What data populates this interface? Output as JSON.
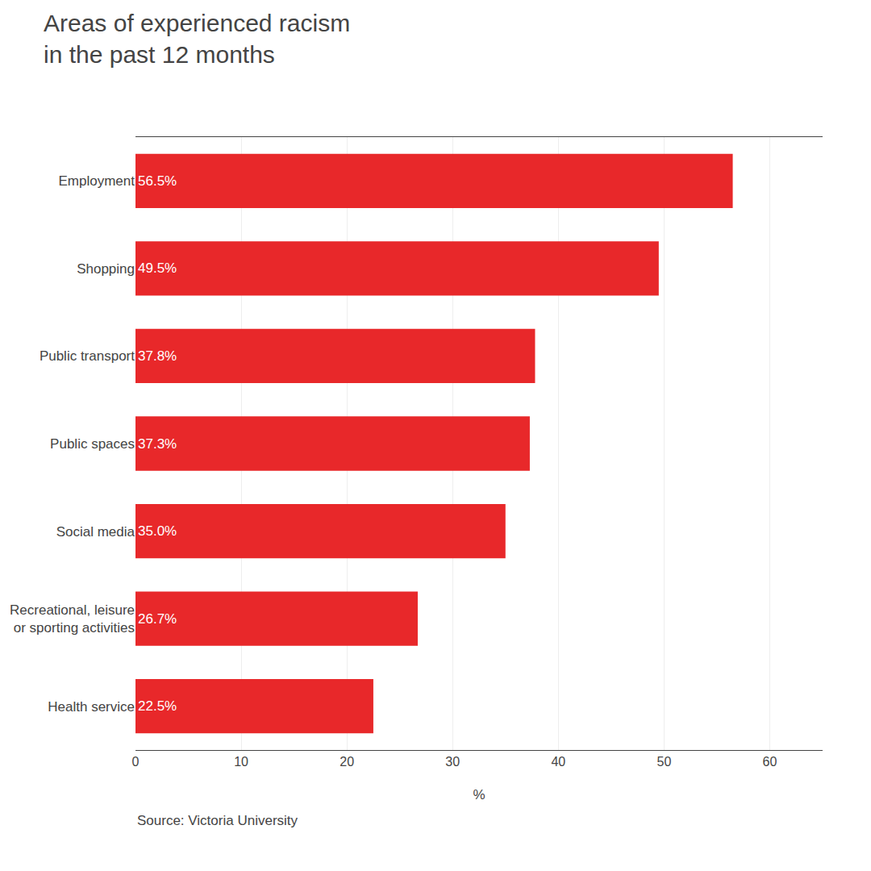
{
  "chart_data": {
    "type": "bar",
    "orientation": "horizontal",
    "title": "Areas of experienced racism\nin the past 12 months",
    "annotations": [
      "Source: Victoria University"
    ],
    "categories": [
      "Employment",
      "Shopping",
      "Public transport",
      "Public spaces",
      "Social media",
      "Recreational, leisure\nor sporting activities",
      "Health service"
    ],
    "values": [
      56.5,
      49.5,
      37.8,
      37.3,
      35.0,
      26.7,
      22.5
    ],
    "value_labels": [
      "56.5%",
      "49.5%",
      "37.8%",
      "37.3%",
      "35.0%",
      "26.7%",
      "22.5%"
    ],
    "data_labels": true,
    "color": "#e8282a",
    "xlabel": "%",
    "xlim": [
      0,
      65
    ],
    "xticks": [
      0,
      10,
      20,
      30,
      40,
      50,
      60
    ],
    "grid": true
  }
}
